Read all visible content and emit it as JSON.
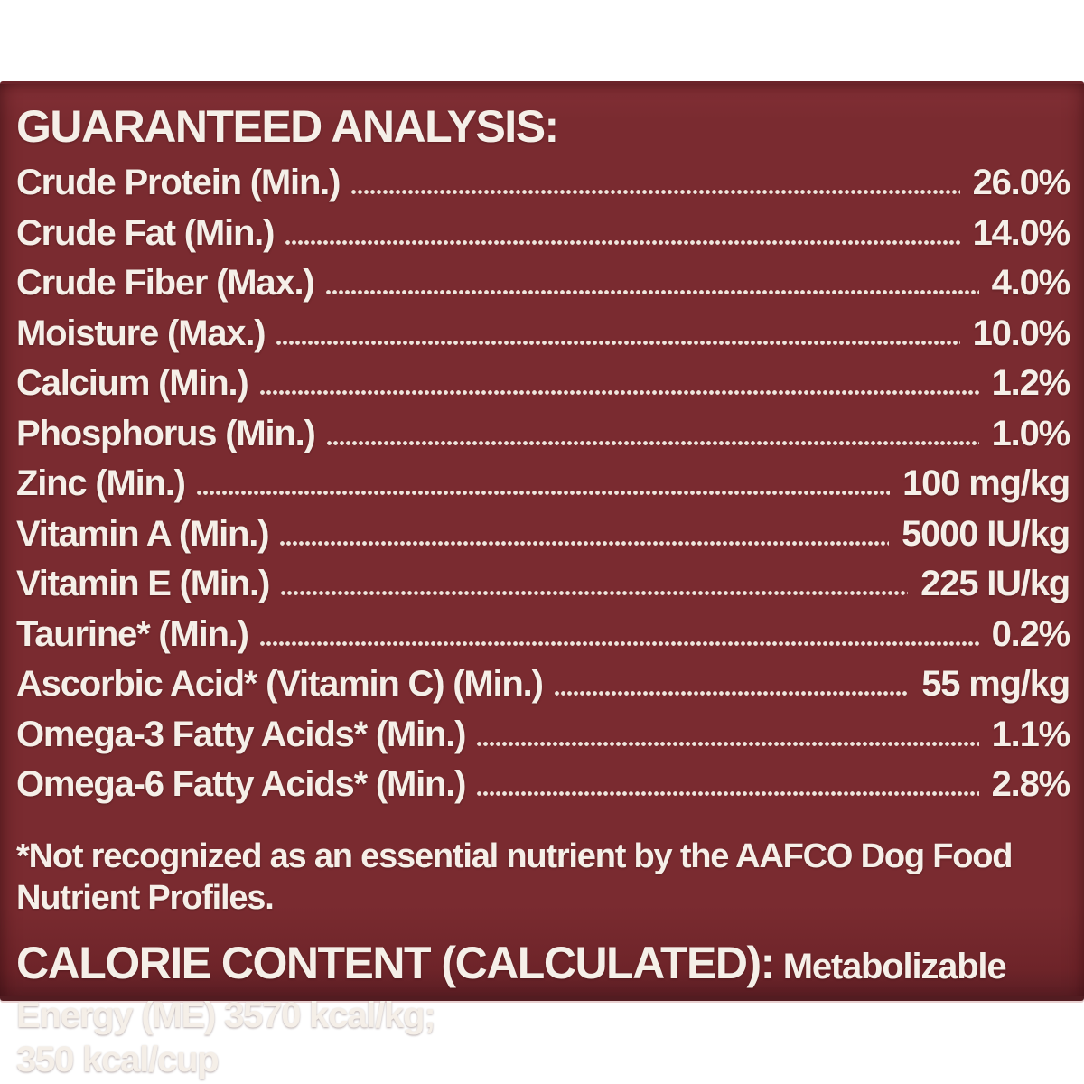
{
  "colors": {
    "page_bg": "#ffffff",
    "panel_bg": "#7a2b30",
    "panel_edge": "#521c21",
    "text": "#f5efe8",
    "dots": "#efe6dd"
  },
  "label": {
    "heading": "GUARANTEED ANALYSIS:",
    "rows": [
      {
        "name": "Crude Protein (Min.)",
        "value": "26.0%"
      },
      {
        "name": "Crude Fat (Min.)",
        "value": "14.0%"
      },
      {
        "name": "Crude Fiber (Max.)",
        "value": "4.0%"
      },
      {
        "name": "Moisture (Max.)",
        "value": "10.0%"
      },
      {
        "name": "Calcium (Min.)",
        "value": "1.2%"
      },
      {
        "name": "Phosphorus (Min.)",
        "value": "1.0%"
      },
      {
        "name": "Zinc (Min.)",
        "value": "100 mg/kg"
      },
      {
        "name": "Vitamin A (Min.)",
        "value": "5000 IU/kg"
      },
      {
        "name": "Vitamin E (Min.)",
        "value": "225 IU/kg"
      },
      {
        "name": "Taurine* (Min.)",
        "value": "0.2%"
      },
      {
        "name": "Ascorbic Acid* (Vitamin C) (Min.)",
        "value": "55 mg/kg"
      },
      {
        "name": "Omega-3 Fatty Acids* (Min.)",
        "value": "1.1%"
      },
      {
        "name": "Omega-6 Fatty Acids* (Min.)",
        "value": "2.8%"
      }
    ],
    "footnote": "*Not recognized as an essential nutrient by the AAFCO Dog Food Nutrient Profiles.",
    "calorie": {
      "heading": "CALORIE CONTENT (CALCULATED):",
      "text": " Metabolizable Energy (ME) 3570 kcal/kg;",
      "text2": "350 kcal/cup"
    }
  }
}
